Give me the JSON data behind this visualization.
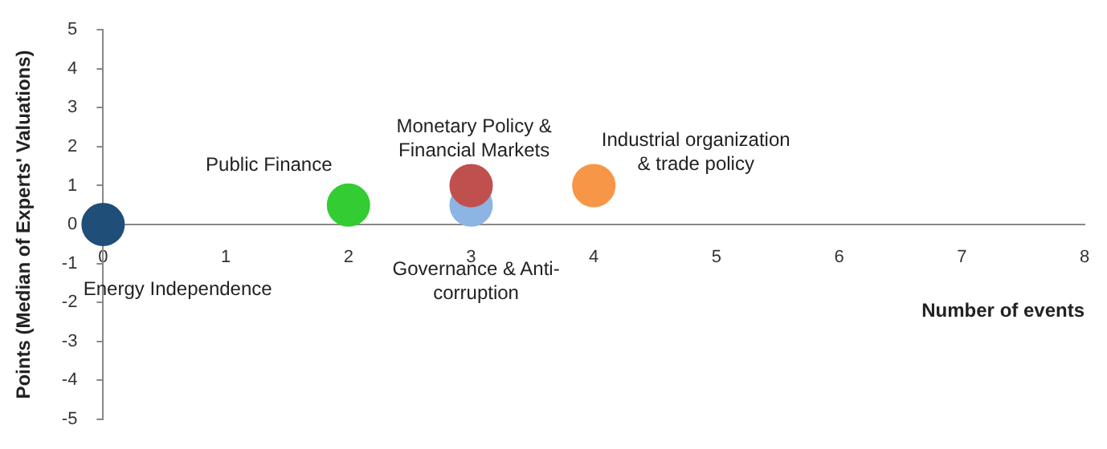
{
  "chart_data": {
    "type": "scatter",
    "xlabel": "Number of events",
    "ylabel": "Points (Median of Experts' Valuations)",
    "x": [
      0,
      2,
      3,
      3,
      4
    ],
    "values": [
      0,
      0.5,
      0.5,
      1,
      1
    ],
    "colors": [
      "#1f4e79",
      "#33cc33",
      "#8db4e2",
      "#c0504d",
      "#f79646"
    ],
    "xlim": [
      0,
      8
    ],
    "xticks": [
      0,
      1,
      2,
      3,
      4,
      5,
      6,
      7,
      8
    ],
    "ylim": [
      -5,
      5
    ],
    "yticks": [
      -5,
      -4,
      -3,
      -2,
      -1,
      0,
      1,
      2,
      3,
      4,
      5
    ],
    "grid": false,
    "legend": false,
    "marker": "circle",
    "annotations": [
      "Energy Independence",
      "Public Finance",
      "Governance & Anti-\ncorruption",
      "Monetary Policy &\nFinancial Markets",
      "Industrial organization\n& trade policy"
    ]
  }
}
